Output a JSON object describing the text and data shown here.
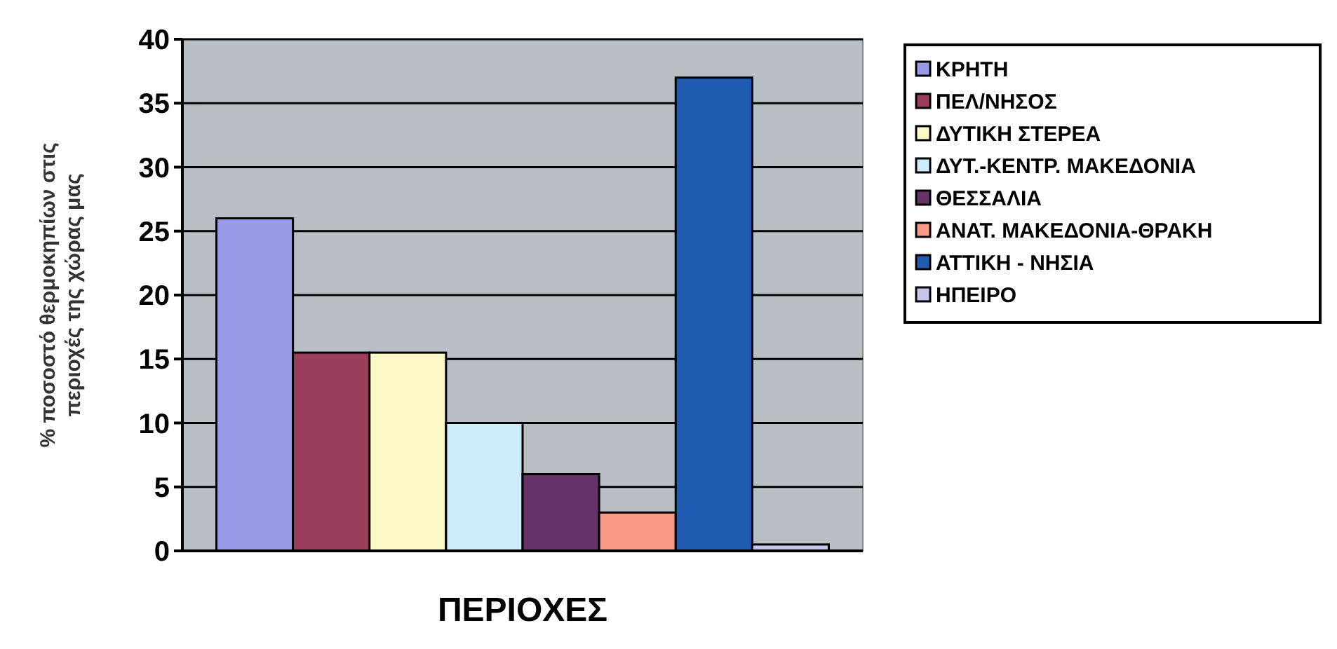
{
  "chart_data": {
    "type": "bar",
    "xlabel": "ΠΕΡΙΟΧΕΣ",
    "ylabel": "% ποσοστό θερμοκηπίων στις περιοχές της χώρας μας",
    "categories": [
      null
    ],
    "series": [
      {
        "name": "ΚΡΗΤΗ",
        "color": "#9999e6",
        "values": [
          26
        ]
      },
      {
        "name": "ΠΕΛ/ΝΗΣΟΣ",
        "color": "#993f5c",
        "values": [
          15.5
        ]
      },
      {
        "name": "ΔΥΤΙΚΗ ΣΤΕΡΕΑ",
        "color": "#fdf8c8",
        "values": [
          15.5
        ]
      },
      {
        "name": "ΔΥΤ.-ΚΕΝΤΡ. ΜΑΚΕΔΟΝΙΑ",
        "color": "#ccecfc",
        "values": [
          10
        ]
      },
      {
        "name": "ΘΕΣΣΑΛΙΑ",
        "color": "#663366",
        "values": [
          6
        ]
      },
      {
        "name": "ΑΝΑΤ. ΜΑΚΕΔΟΝΙΑ-ΘΡΑΚΗ",
        "color": "#f99a86",
        "values": [
          3
        ]
      },
      {
        "name": "ΑΤΤΙΚΗ - ΝΗΣΙΑ",
        "color": "#1f5bb0",
        "values": [
          37
        ]
      },
      {
        "name": "ΗΠΕΙΡΟ",
        "color": "#c4c4ec",
        "values": [
          0.5
        ]
      }
    ],
    "ylim": [
      0,
      40
    ],
    "yticks": [
      0,
      5,
      10,
      15,
      20,
      25,
      30,
      35,
      40
    ],
    "grid": "y",
    "legend": "right"
  }
}
